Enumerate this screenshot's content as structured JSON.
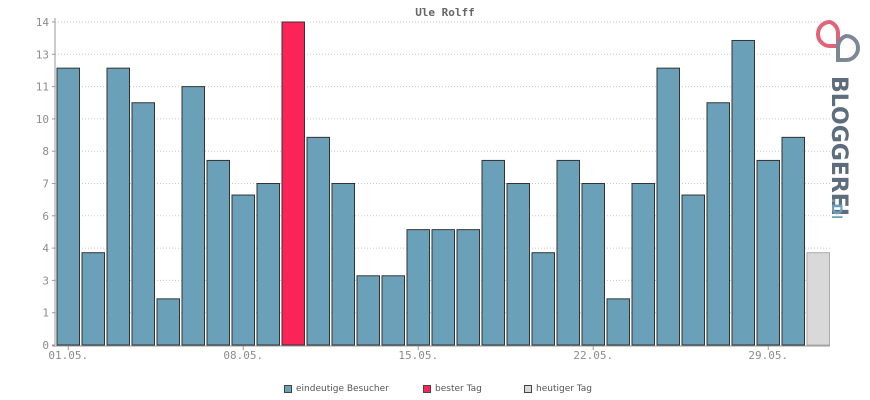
{
  "chart_data": {
    "type": "bar",
    "title": "Ule Rolff",
    "y_ticks": [
      {
        "value": 0,
        "label": "0"
      },
      {
        "value": 1,
        "label": "1"
      },
      {
        "value": 2,
        "label": "3"
      },
      {
        "value": 3,
        "label": "4"
      },
      {
        "value": 4,
        "label": "6"
      },
      {
        "value": 5,
        "label": "7"
      },
      {
        "value": 6,
        "label": "8"
      },
      {
        "value": 7,
        "label": "10"
      },
      {
        "value": 8,
        "label": "11"
      },
      {
        "value": 9,
        "label": "13"
      },
      {
        "value": 10,
        "label": "14"
      }
    ],
    "x_ticks": [
      {
        "index": 0,
        "label": "01.05."
      },
      {
        "index": 7,
        "label": "08.05."
      },
      {
        "index": 14,
        "label": "15.05."
      },
      {
        "index": 21,
        "label": "22.05."
      },
      {
        "index": 28,
        "label": "29.05."
      }
    ],
    "values": [
      12,
      4,
      12,
      10.5,
      2,
      11.2,
      8,
      6.5,
      7,
      14,
      9,
      7,
      3,
      3,
      5,
      5,
      5,
      8,
      7,
      4,
      8,
      7,
      2,
      7,
      12,
      6.5,
      10.5,
      13.2,
      8,
      9,
      4
    ],
    "bar_kinds": [
      "u",
      "u",
      "u",
      "u",
      "u",
      "u",
      "u",
      "u",
      "u",
      "b",
      "u",
      "u",
      "u",
      "u",
      "u",
      "u",
      "u",
      "u",
      "u",
      "u",
      "u",
      "u",
      "u",
      "u",
      "u",
      "u",
      "u",
      "u",
      "u",
      "u",
      "t"
    ],
    "ylim": [
      0,
      14
    ],
    "grid": true,
    "legend_position": "bottom"
  },
  "legend": {
    "unique": "eindeutige Besucher",
    "best": "bester Tag",
    "today": "heutiger Tag"
  },
  "colors": {
    "unique": "#6aa1b8",
    "best": "#fb2459",
    "today": "#d9d9d9",
    "logo_text": "#5d6d7d",
    "logo_de": "#6aa1b8",
    "logo_icon_left": "#e26377",
    "logo_icon_right": "#7c8896"
  },
  "logo": {
    "name": "BLOGGEREI",
    "suffix": ".DE"
  }
}
